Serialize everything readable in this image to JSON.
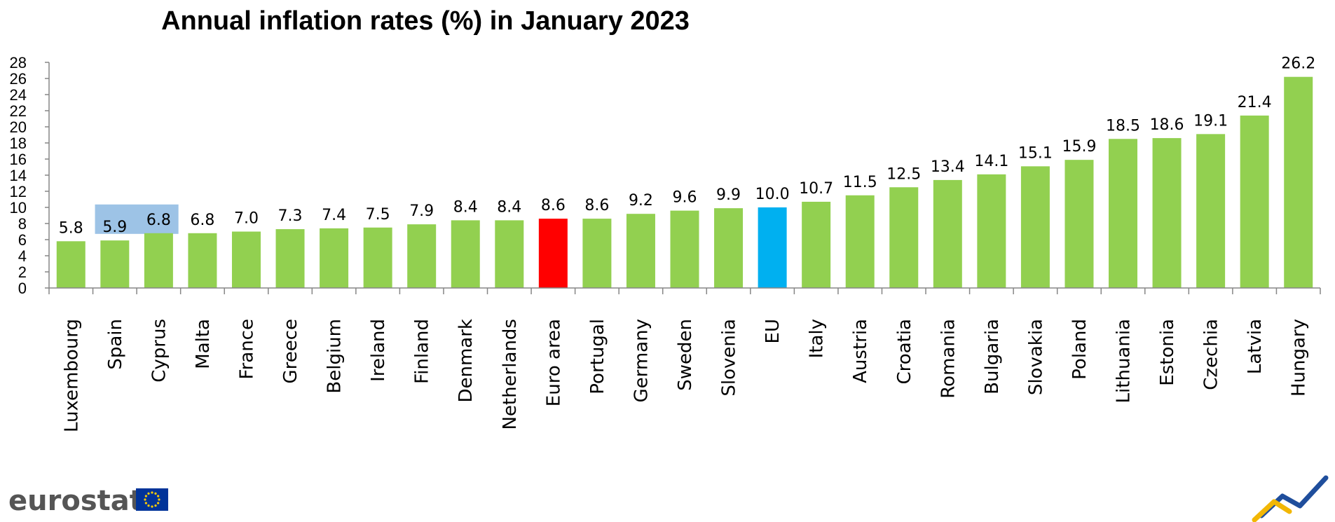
{
  "chart_data": {
    "type": "bar",
    "title": "Annual inflation rates (%) in January 2023",
    "xlabel": "",
    "ylabel": "",
    "ylim": [
      0,
      28
    ],
    "yticks": [
      0,
      2,
      4,
      6,
      8,
      10,
      12,
      14,
      16,
      18,
      20,
      22,
      24,
      26,
      28
    ],
    "grid": false,
    "categories": [
      "Luxembourg",
      "Spain",
      "Cyprus",
      "Malta",
      "France",
      "Greece",
      "Belgium",
      "Ireland",
      "Finland",
      "Denmark",
      "Netherlands",
      "Euro area",
      "Portugal",
      "Germany",
      "Sweden",
      "Slovenia",
      "EU",
      "Italy",
      "Austria",
      "Croatia",
      "Romania",
      "Bulgaria",
      "Slovakia",
      "Poland",
      "Lithuania",
      "Estonia",
      "Czechia",
      "Latvia",
      "Hungary"
    ],
    "values": [
      5.8,
      5.9,
      6.8,
      6.8,
      7.0,
      7.3,
      7.4,
      7.5,
      7.9,
      8.4,
      8.4,
      8.6,
      8.6,
      9.2,
      9.6,
      9.9,
      10.0,
      10.7,
      11.5,
      12.5,
      13.4,
      14.1,
      15.1,
      15.9,
      18.5,
      18.6,
      19.1,
      21.4,
      26.2
    ],
    "value_labels": [
      "5.8",
      "5.9",
      "6.8",
      "6.8",
      "7.0",
      "7.3",
      "7.4",
      "7.5",
      "7.9",
      "8.4",
      "8.4",
      "8.6",
      "8.6",
      "9.2",
      "9.6",
      "9.9",
      "10.0",
      "10.7",
      "11.5",
      "12.5",
      "13.4",
      "14.1",
      "15.1",
      "15.9",
      "18.5",
      "18.6",
      "19.1",
      "21.4",
      "26.2"
    ],
    "colors": {
      "default": "#92d050",
      "Euro area": "#ff0000",
      "EU": "#00b0f0"
    },
    "highlight_label_categories": [
      "Spain",
      "Cyprus"
    ],
    "highlight_color": "#9dc3e6"
  },
  "branding": {
    "logo_text": "eurostat",
    "flag_color": "#003399",
    "star_color": "#ffcc00"
  }
}
